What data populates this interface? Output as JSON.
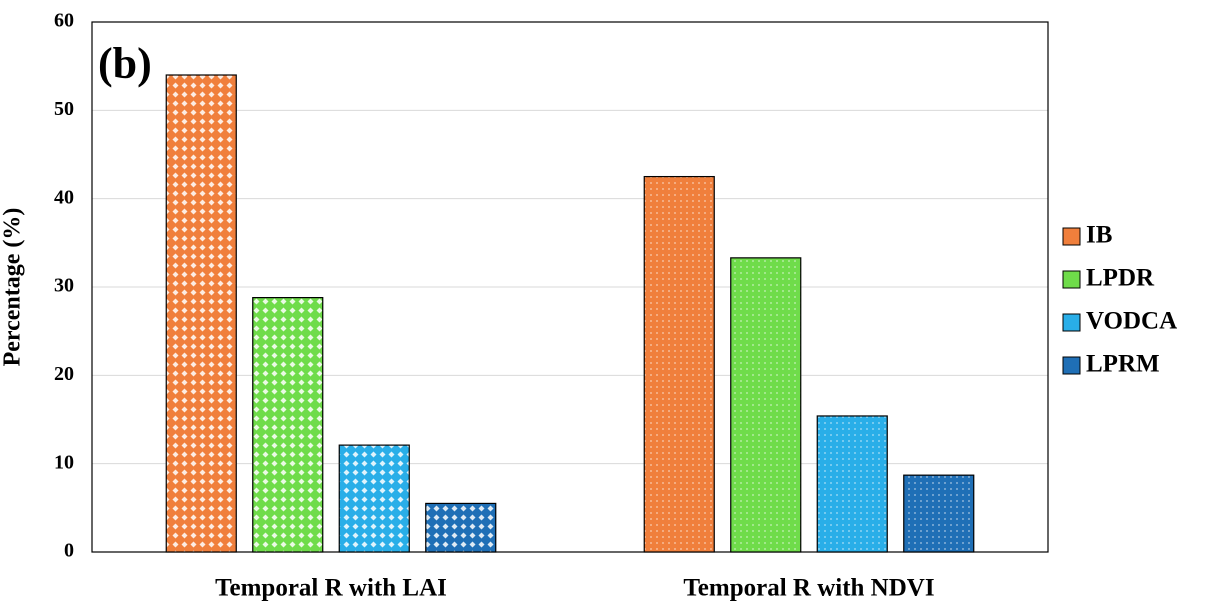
{
  "chart_data": {
    "type": "bar",
    "annotation": "(b)",
    "y_label": "Percentage (%)",
    "categories": [
      "Temporal R with LAI",
      "Temporal R with NDVI"
    ],
    "series": [
      {
        "name": "IB",
        "color": "#f07f3c",
        "values": [
          54,
          42.5
        ]
      },
      {
        "name": "LPDR",
        "color": "#6fdc4a",
        "values": [
          28.8,
          33.3
        ]
      },
      {
        "name": "VODCA",
        "color": "#29aee8",
        "values": [
          12.1,
          15.4
        ]
      },
      {
        "name": "LPRM",
        "color": "#1f6fb6",
        "values": [
          5.5,
          8.7
        ]
      }
    ],
    "ylim": [
      0,
      60
    ],
    "yticks": [
      0,
      10,
      20,
      30,
      40,
      50,
      60
    ],
    "grid": true,
    "legend": "right"
  }
}
